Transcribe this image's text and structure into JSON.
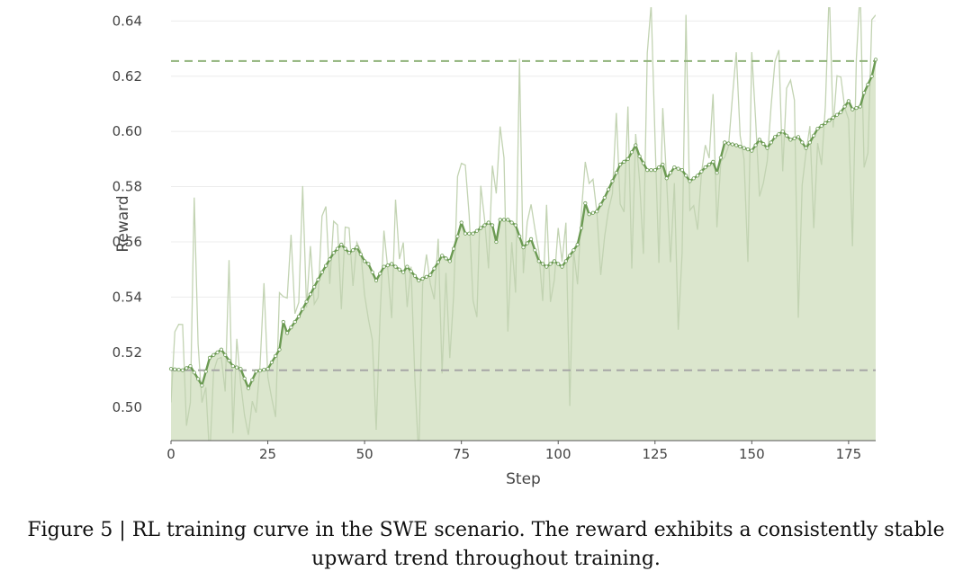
{
  "figure": {
    "caption_line1": "Figure 5 | RL training curve in the SWE scenario. The reward exhibits a consistently stable",
    "caption_line2": "upward trend throughout training."
  },
  "colors": {
    "smoothed_line": "#6b9a52",
    "fill": "#dbe6cd",
    "raw_line": "#c2d3b2",
    "ref_line_green": "#8fb27a",
    "ref_line_gray": "#a6a6a6",
    "grid": "#ececec",
    "axis": "#555555"
  },
  "chart_data": {
    "type": "line",
    "xlabel": "Step",
    "ylabel": "Reward",
    "xlim": [
      0,
      182
    ],
    "ylim": [
      0.488,
      0.645
    ],
    "xticks": [
      0,
      25,
      50,
      75,
      100,
      125,
      150,
      175
    ],
    "yticks": [
      0.5,
      0.52,
      0.54,
      0.56,
      0.58,
      0.6,
      0.62,
      0.64
    ],
    "grid": "horizontal",
    "reference_lines": [
      {
        "y": 0.6255,
        "style": "dashed",
        "color": "green"
      },
      {
        "y": 0.5135,
        "style": "dashed",
        "color": "gray"
      }
    ],
    "smoothed_keypoints": [
      [
        0,
        0.514
      ],
      [
        3,
        0.5135
      ],
      [
        5,
        0.515
      ],
      [
        8,
        0.508
      ],
      [
        10,
        0.518
      ],
      [
        13,
        0.521
      ],
      [
        16,
        0.515
      ],
      [
        18,
        0.514
      ],
      [
        20,
        0.507
      ],
      [
        22,
        0.513
      ],
      [
        25,
        0.514
      ],
      [
        28,
        0.521
      ],
      [
        29,
        0.531
      ],
      [
        30,
        0.527
      ],
      [
        33,
        0.533
      ],
      [
        36,
        0.541
      ],
      [
        39,
        0.549
      ],
      [
        42,
        0.556
      ],
      [
        44,
        0.559
      ],
      [
        46,
        0.556
      ],
      [
        48,
        0.558
      ],
      [
        50,
        0.553
      ],
      [
        51,
        0.552
      ],
      [
        53,
        0.546
      ],
      [
        55,
        0.551
      ],
      [
        57,
        0.552
      ],
      [
        60,
        0.549
      ],
      [
        61,
        0.551
      ],
      [
        64,
        0.546
      ],
      [
        67,
        0.548
      ],
      [
        70,
        0.555
      ],
      [
        72,
        0.553
      ],
      [
        74,
        0.562
      ],
      [
        75,
        0.567
      ],
      [
        76,
        0.563
      ],
      [
        78,
        0.563
      ],
      [
        80,
        0.565
      ],
      [
        82,
        0.567
      ],
      [
        83,
        0.566
      ],
      [
        84,
        0.56
      ],
      [
        85,
        0.568
      ],
      [
        87,
        0.568
      ],
      [
        89,
        0.566
      ],
      [
        91,
        0.558
      ],
      [
        93,
        0.561
      ],
      [
        95,
        0.553
      ],
      [
        97,
        0.551
      ],
      [
        99,
        0.553
      ],
      [
        101,
        0.551
      ],
      [
        103,
        0.555
      ],
      [
        105,
        0.559
      ],
      [
        106,
        0.565
      ],
      [
        107,
        0.574
      ],
      [
        108,
        0.57
      ],
      [
        110,
        0.571
      ],
      [
        112,
        0.576
      ],
      [
        114,
        0.582
      ],
      [
        116,
        0.588
      ],
      [
        118,
        0.59
      ],
      [
        120,
        0.595
      ],
      [
        121,
        0.591
      ],
      [
        123,
        0.586
      ],
      [
        125,
        0.586
      ],
      [
        127,
        0.588
      ],
      [
        128,
        0.583
      ],
      [
        130,
        0.587
      ],
      [
        132,
        0.586
      ],
      [
        134,
        0.582
      ],
      [
        136,
        0.584
      ],
      [
        138,
        0.587
      ],
      [
        140,
        0.589
      ],
      [
        141,
        0.585
      ],
      [
        143,
        0.596
      ],
      [
        146,
        0.595
      ],
      [
        148,
        0.594
      ],
      [
        150,
        0.593
      ],
      [
        152,
        0.597
      ],
      [
        154,
        0.594
      ],
      [
        156,
        0.598
      ],
      [
        158,
        0.6
      ],
      [
        160,
        0.597
      ],
      [
        162,
        0.598
      ],
      [
        164,
        0.594
      ],
      [
        165,
        0.596
      ],
      [
        167,
        0.601
      ],
      [
        169,
        0.603
      ],
      [
        171,
        0.605
      ],
      [
        173,
        0.607
      ],
      [
        175,
        0.611
      ],
      [
        176,
        0.608
      ],
      [
        178,
        0.609
      ],
      [
        179,
        0.614
      ],
      [
        180,
        0.617
      ],
      [
        181,
        0.62
      ],
      [
        182,
        0.626
      ]
    ]
  }
}
